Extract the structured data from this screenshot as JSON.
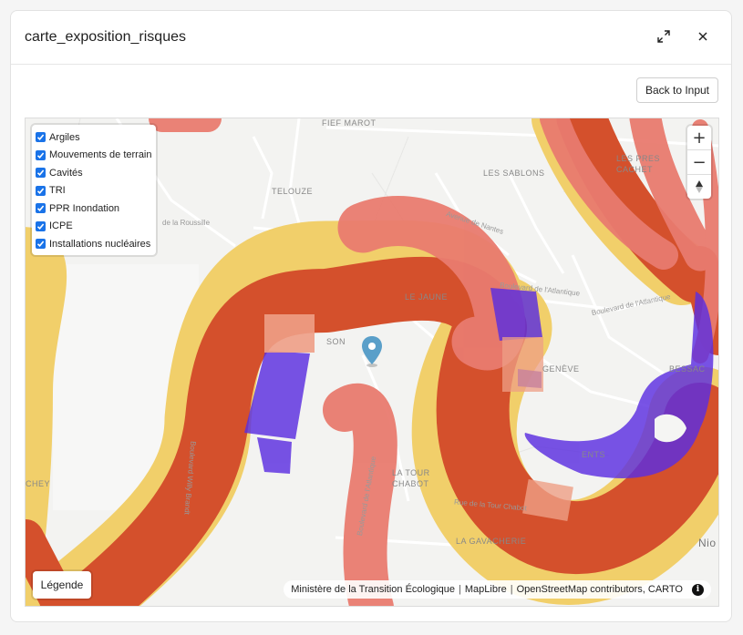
{
  "header": {
    "title": "carte_exposition_risques"
  },
  "toolbar": {
    "back_label": "Back to Input"
  },
  "layers": [
    {
      "label": "Argiles",
      "checked": true
    },
    {
      "label": "Mouvements de terrain",
      "checked": true
    },
    {
      "label": "Cavités",
      "checked": true
    },
    {
      "label": "TRI",
      "checked": true
    },
    {
      "label": "PPR Inondation",
      "checked": true
    },
    {
      "label": "ICPE",
      "checked": true
    },
    {
      "label": "Installations nucléaires",
      "checked": true
    }
  ],
  "zoom": {
    "in": "+",
    "out": "−"
  },
  "legend_button": "Légende",
  "attribution": {
    "part1": "Ministère de la Transition Écologique",
    "part2": "MapLibre",
    "part3": "OpenStreetMap contributors, CARTO",
    "info": "i"
  },
  "map_labels": {
    "fief_marot": "FIEF MAROT",
    "les_sablons": "LES SABLONS",
    "telouze": "TELOUZE",
    "le_jaune": "LE JAUNE",
    "les_pres_line1": "LES PRES",
    "les_pres_line2": "CACHET",
    "geneve": "GENÈVE",
    "bessac": "BESSAC",
    "la_tour_line1": "LA TOUR",
    "la_tour_line2": "CHABOT",
    "la_gavacherie": "LA GAVACHERIE",
    "ents": "ENTS",
    "son": "SON",
    "chey": "CHEY",
    "nio": "Nio"
  },
  "street_labels": {
    "bd_atlantique_1": "Boulevard de l'Atlantique",
    "bd_atlantique_2": "Boulevard de l'Atlantique",
    "bd_atlantique_3": "Boulevard de l'Atlantique",
    "bd_willy_brandt": "Boulevard Willy Brandt",
    "rue_tour_chabot": "Rue de la Tour Chabot",
    "rue_roussille": "de la Roussille",
    "avenue_nantes": "Avenue de Nantes"
  },
  "colors": {
    "argiles_yellow": "#f1cf6a",
    "mouvement_red": "#e97b6f",
    "ppr_orange": "#d4502c",
    "icpe_purple": "#5b2ee0",
    "marker": "#5a9fc9"
  },
  "icons": {
    "expand": "expand-icon",
    "close": "close-icon",
    "compass": "compass-icon",
    "marker": "location-marker-icon",
    "info": "info-icon"
  }
}
